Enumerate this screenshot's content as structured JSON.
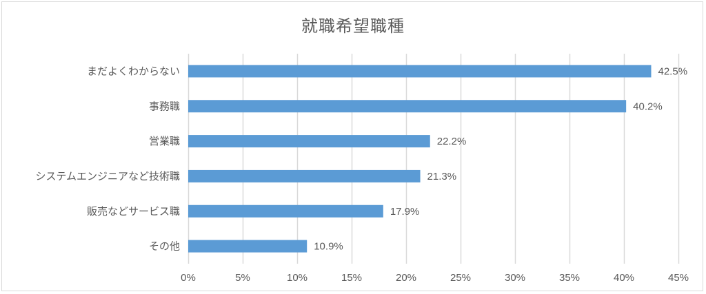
{
  "chart_data": {
    "type": "bar",
    "orientation": "horizontal",
    "title": "就職希望職種",
    "categories": [
      "まだよくわからない",
      "事務職",
      "営業職",
      "システムエンジニアなど技術職",
      "販売などサービス職",
      "その他"
    ],
    "values": [
      42.5,
      40.2,
      22.2,
      21.3,
      17.9,
      10.9
    ],
    "data_labels": [
      "42.5%",
      "40.2%",
      "22.2%",
      "21.3%",
      "17.9%",
      "10.9%"
    ],
    "xlim": [
      0,
      45
    ],
    "ticks": [
      0,
      5,
      10,
      15,
      20,
      25,
      30,
      35,
      40,
      45
    ],
    "tick_labels": [
      "0%",
      "5%",
      "10%",
      "15%",
      "20%",
      "25%",
      "30%",
      "35%",
      "40%",
      "45%"
    ],
    "grid": "vertical",
    "legend": "none",
    "bar_color": "#5b9bd5",
    "grid_color": "#d9d9d9"
  }
}
